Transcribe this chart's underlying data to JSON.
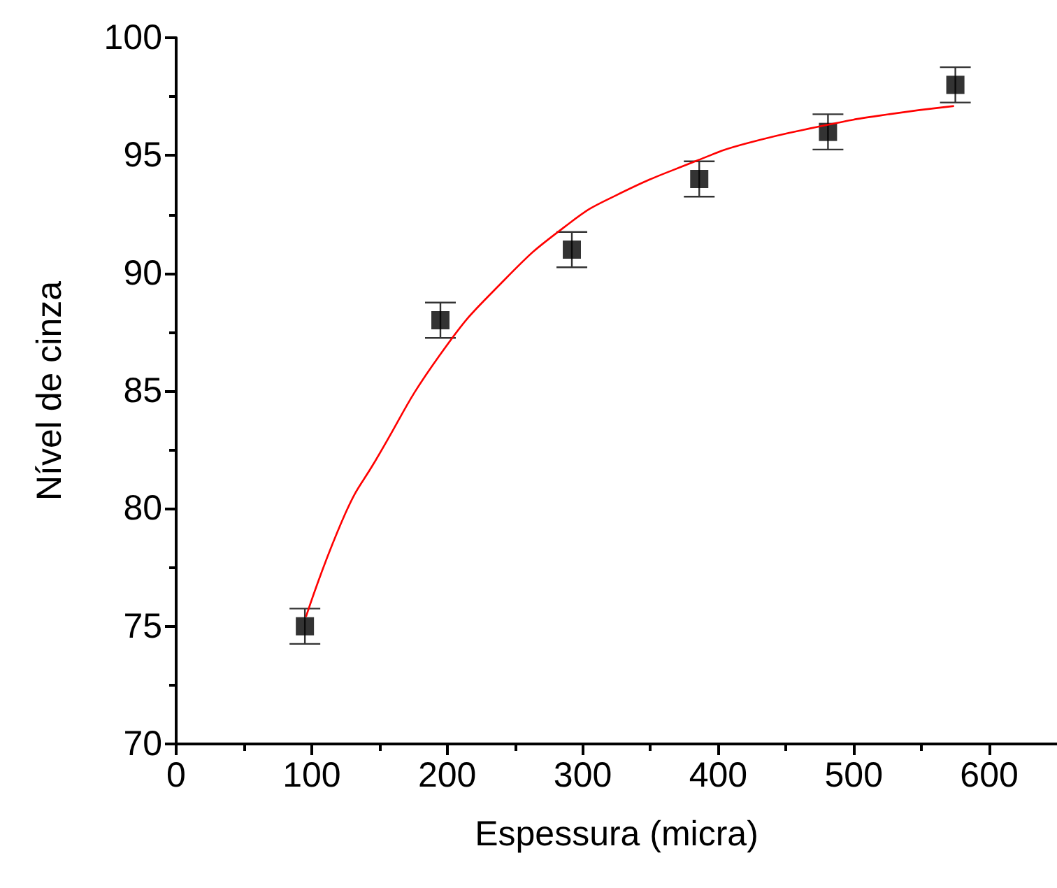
{
  "chart_data": {
    "type": "scatter",
    "xlabel": "Espessura (micra)",
    "ylabel": "Nível de cinza",
    "xlim": [
      0,
      650
    ],
    "xticks": [
      0,
      100,
      200,
      300,
      400,
      500,
      600
    ],
    "ylim": [
      70,
      100
    ],
    "yticks": [
      70,
      75,
      80,
      85,
      90,
      95,
      100
    ],
    "grid": false,
    "marker": "square",
    "series": [
      {
        "color": "#000000",
        "x": [
          95,
          195,
          292,
          386,
          481,
          575
        ],
        "values": [
          75,
          88,
          91,
          94,
          96,
          98
        ],
        "errors": [
          0.75,
          0.75,
          0.75,
          0.75,
          0.75,
          0.75
        ]
      },
      {
        "type": "line",
        "color": "#ff0000",
        "marker": "none",
        "x": [
          95.8,
          124.9,
          146.7,
          194.3,
          242,
          289.7,
          324.4,
          385.2,
          420,
          480.7,
          519.8,
          574
        ],
        "values": [
          75.4,
          79.8,
          82.0,
          86.5,
          89.7,
          92.1,
          93.3,
          94.8,
          95.5,
          96.3,
          96.7,
          97.1
        ]
      }
    ]
  }
}
